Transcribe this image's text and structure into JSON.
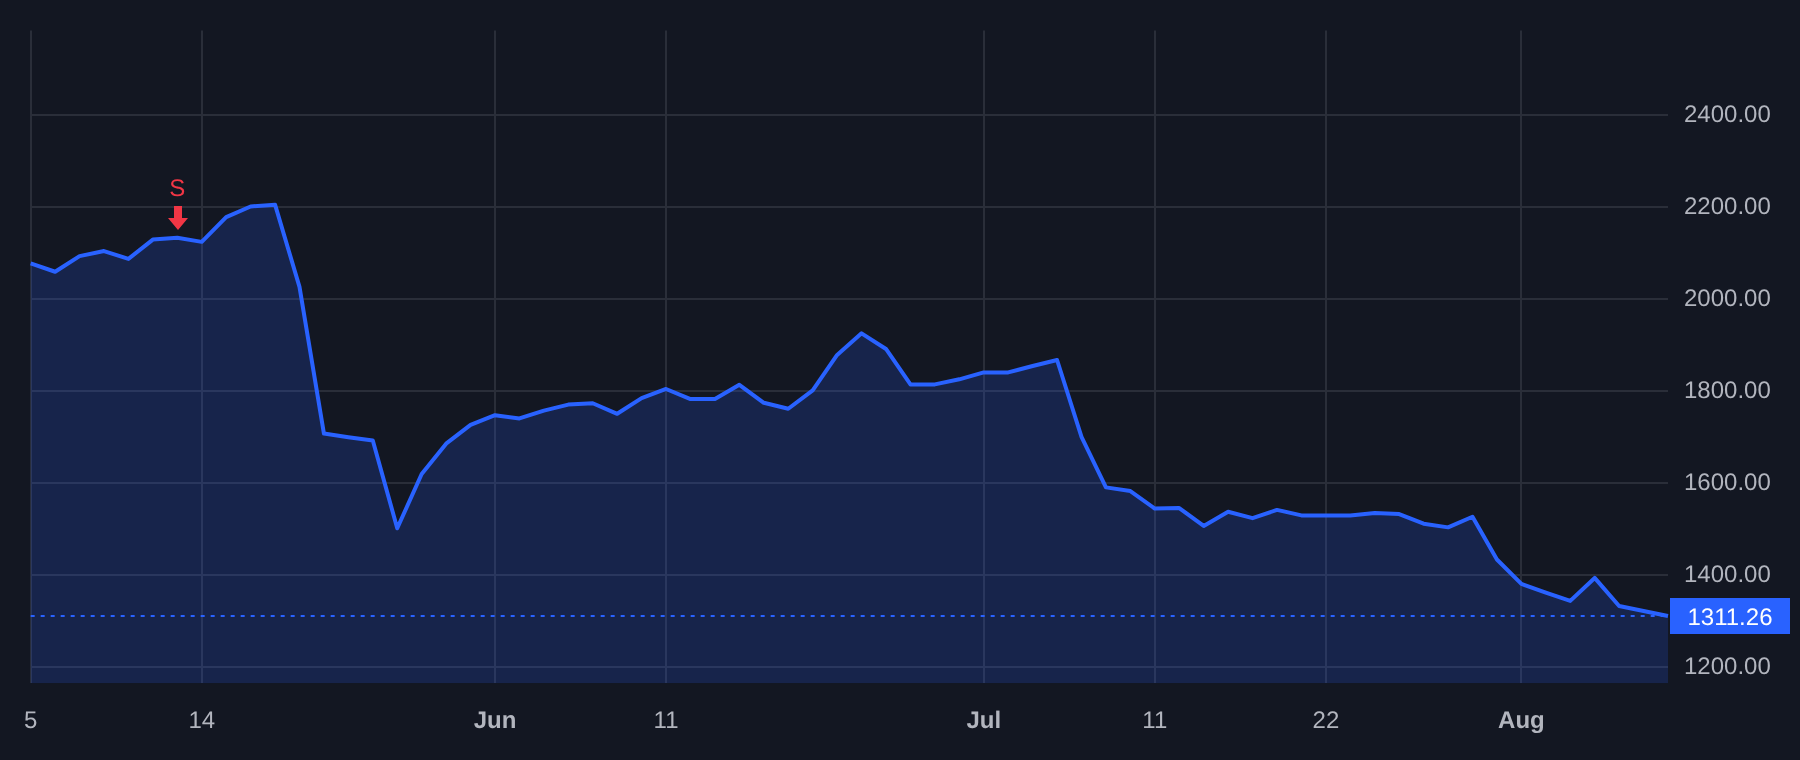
{
  "chart_data": {
    "type": "area",
    "categories": [
      "5",
      null,
      null,
      null,
      null,
      null,
      null,
      "14",
      null,
      null,
      null,
      null,
      null,
      null,
      null,
      null,
      null,
      null,
      null,
      "Jun",
      null,
      null,
      null,
      null,
      null,
      null,
      "11",
      null,
      null,
      null,
      null,
      null,
      null,
      null,
      null,
      null,
      null,
      null,
      null,
      "Jul",
      null,
      null,
      null,
      null,
      null,
      null,
      "11",
      null,
      null,
      null,
      null,
      null,
      null,
      "22",
      null,
      null,
      null,
      null,
      null,
      null,
      null,
      "Aug",
      null,
      null,
      null,
      null,
      null,
      null
    ],
    "series": [
      {
        "color": "#2962ff",
        "values": [
          2078,
          2060,
          2094,
          2105,
          2088,
          2130,
          2134,
          2125,
          2179,
          2202,
          2206,
          2027,
          1708,
          1700,
          1693,
          1502,
          1620,
          1686,
          1727,
          1748,
          1741,
          1758,
          1771,
          1774,
          1751,
          1785,
          1805,
          1783,
          1783,
          1814,
          1775,
          1762,
          1802,
          1879,
          1926,
          1892,
          1815,
          1815,
          1826,
          1841,
          1841,
          1855,
          1868,
          1701,
          1591,
          1583,
          1545,
          1546,
          1507,
          1538,
          1524,
          1542,
          1530,
          1530,
          1530,
          1535,
          1533,
          1512,
          1504,
          1527,
          1434,
          1381,
          1362,
          1344,
          1394,
          1333,
          1322,
          1311.26
        ]
      }
    ],
    "ylim": [
      1165,
      2585
    ],
    "yticks": [
      {
        "value": 1200,
        "label": "1200.00"
      },
      {
        "value": 1400,
        "label": "1400.00"
      },
      {
        "value": 1600,
        "label": "1600.00"
      },
      {
        "value": 1800,
        "label": "1800.00"
      },
      {
        "value": 2000,
        "label": "2000.00"
      },
      {
        "value": 2200,
        "label": "2200.00"
      },
      {
        "value": 2400,
        "label": "2400.00"
      }
    ],
    "grid": true,
    "ref_lines": [
      {
        "axis": "y",
        "value": 1311.26,
        "label": "1311.26",
        "color": "#2962ff",
        "line_style": "dotted"
      }
    ],
    "annotations": [
      {
        "text": "S",
        "y": 2134
      }
    ]
  }
}
